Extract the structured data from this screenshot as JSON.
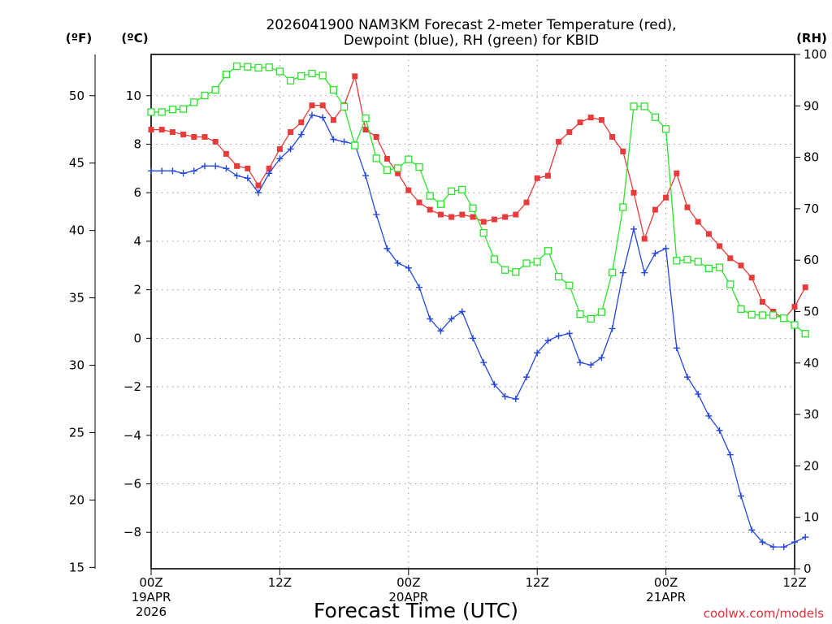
{
  "chart_data": {
    "type": "line",
    "title_line1": "2026041900 NAM3KM Forecast 2-meter Temperature (red),",
    "title_line2": "Dewpoint (blue), RH (green) for KBID",
    "xlabel": "Forecast Time (UTC)",
    "credit": "coolwx.com/models",
    "units": {
      "fahrenheit": "(ºF)",
      "celsius": "(ºC)",
      "rh": "(RH)"
    },
    "x_range_hours": [
      0,
      60
    ],
    "celsius_range": [
      -9.5,
      11.7
    ],
    "rh_range": [
      0,
      100
    ],
    "x_ticks": [
      {
        "hour": 0,
        "label": "00Z",
        "date": "19APR",
        "year": "2026"
      },
      {
        "hour": 12,
        "label": "12Z",
        "date": "",
        "year": ""
      },
      {
        "hour": 24,
        "label": "00Z",
        "date": "20APR",
        "year": ""
      },
      {
        "hour": 36,
        "label": "12Z",
        "date": "",
        "year": ""
      },
      {
        "hour": 48,
        "label": "00Z",
        "date": "21APR",
        "year": ""
      },
      {
        "hour": 60,
        "label": "12Z",
        "date": "",
        "year": ""
      }
    ],
    "celsius_ticks": [
      {
        "value": 10,
        "label": "10"
      },
      {
        "value": 8,
        "label": "8"
      },
      {
        "value": 6,
        "label": "6"
      },
      {
        "value": 4,
        "label": "4"
      },
      {
        "value": 2,
        "label": "2"
      },
      {
        "value": 0,
        "label": "0"
      },
      {
        "value": -2,
        "label": "−2"
      },
      {
        "value": -4,
        "label": "−4"
      },
      {
        "value": -6,
        "label": "−6"
      },
      {
        "value": -8,
        "label": "−8"
      }
    ],
    "fahrenheit_ticks": [
      {
        "value": 50,
        "label": "50"
      },
      {
        "value": 45,
        "label": "45"
      },
      {
        "value": 40,
        "label": "40"
      },
      {
        "value": 35,
        "label": "35"
      },
      {
        "value": 30,
        "label": "30"
      },
      {
        "value": 25,
        "label": "25"
      },
      {
        "value": 20,
        "label": "20"
      },
      {
        "value": 15,
        "label": "15"
      }
    ],
    "rh_ticks": [
      {
        "value": 100,
        "label": "100"
      },
      {
        "value": 90,
        "label": "90"
      },
      {
        "value": 80,
        "label": "80"
      },
      {
        "value": 70,
        "label": "70"
      },
      {
        "value": 60,
        "label": "60"
      },
      {
        "value": 50,
        "label": "50"
      },
      {
        "value": 40,
        "label": "40"
      },
      {
        "value": 30,
        "label": "30"
      },
      {
        "value": 20,
        "label": "20"
      },
      {
        "value": 10,
        "label": "10"
      },
      {
        "value": 0,
        "label": "0"
      }
    ],
    "series": [
      {
        "name": "2-meter Temperature",
        "color": "#e83b3b",
        "marker": "filled-square",
        "axis": "celsius",
        "values": [
          8.6,
          8.6,
          8.5,
          8.4,
          8.3,
          8.3,
          8.1,
          7.6,
          7.1,
          7.0,
          6.3,
          7.0,
          7.8,
          8.5,
          8.9,
          9.6,
          9.6,
          9.0,
          9.6,
          10.8,
          8.6,
          8.3,
          7.4,
          6.8,
          6.1,
          5.6,
          5.3,
          5.1,
          5.0,
          5.1,
          5.0,
          4.8,
          4.9,
          5.0,
          5.1,
          5.6,
          6.6,
          6.7,
          8.1,
          8.5,
          8.9,
          9.1,
          9.0,
          8.3,
          7.7,
          6.0,
          4.1,
          5.3,
          5.8,
          6.8,
          5.4,
          4.8,
          4.3,
          3.8,
          3.3,
          3.0,
          2.5,
          1.5,
          1.1,
          0.8,
          1.3,
          2.1
        ]
      },
      {
        "name": "Dewpoint",
        "color": "#2447e0",
        "marker": "plus",
        "axis": "celsius",
        "values": [
          6.9,
          6.9,
          6.9,
          6.8,
          6.9,
          7.1,
          7.1,
          7.0,
          6.7,
          6.6,
          6.0,
          6.8,
          7.4,
          7.8,
          8.4,
          9.2,
          9.1,
          8.2,
          8.1,
          8.0,
          6.7,
          5.1,
          3.7,
          3.1,
          2.9,
          2.1,
          0.8,
          0.3,
          0.8,
          1.1,
          0.0,
          -1.0,
          -1.9,
          -2.4,
          -2.5,
          -1.6,
          -0.6,
          -0.1,
          0.1,
          0.2,
          -1.0,
          -1.1,
          -0.8,
          0.4,
          2.7,
          4.5,
          2.7,
          3.5,
          3.7,
          -0.4,
          -1.6,
          -2.3,
          -3.2,
          -3.8,
          -4.8,
          -6.5,
          -7.9,
          -8.4,
          -8.6,
          -8.6,
          -8.4,
          -8.2
        ]
      },
      {
        "name": "RH",
        "color": "#2ee22e",
        "marker": "open-square",
        "axis": "rh",
        "values": [
          88.8,
          88.8,
          89.3,
          89.4,
          90.7,
          92.0,
          93.1,
          96.1,
          97.7,
          97.6,
          97.4,
          97.5,
          96.7,
          94.9,
          95.8,
          96.3,
          95.9,
          93.1,
          89.8,
          82.3,
          87.6,
          79.8,
          77.5,
          77.9,
          79.6,
          78.1,
          72.5,
          70.9,
          73.4,
          73.7,
          70.1,
          65.3,
          60.2,
          58.1,
          57.7,
          59.4,
          59.7,
          61.8,
          56.8,
          55.1,
          49.5,
          48.6,
          49.9,
          57.6,
          70.3,
          89.9,
          89.9,
          87.8,
          85.5,
          59.9,
          60.1,
          59.7,
          58.4,
          58.6,
          55.3,
          50.5,
          49.4,
          49.3,
          49.3,
          48.7,
          47.4,
          45.7
        ]
      }
    ]
  }
}
